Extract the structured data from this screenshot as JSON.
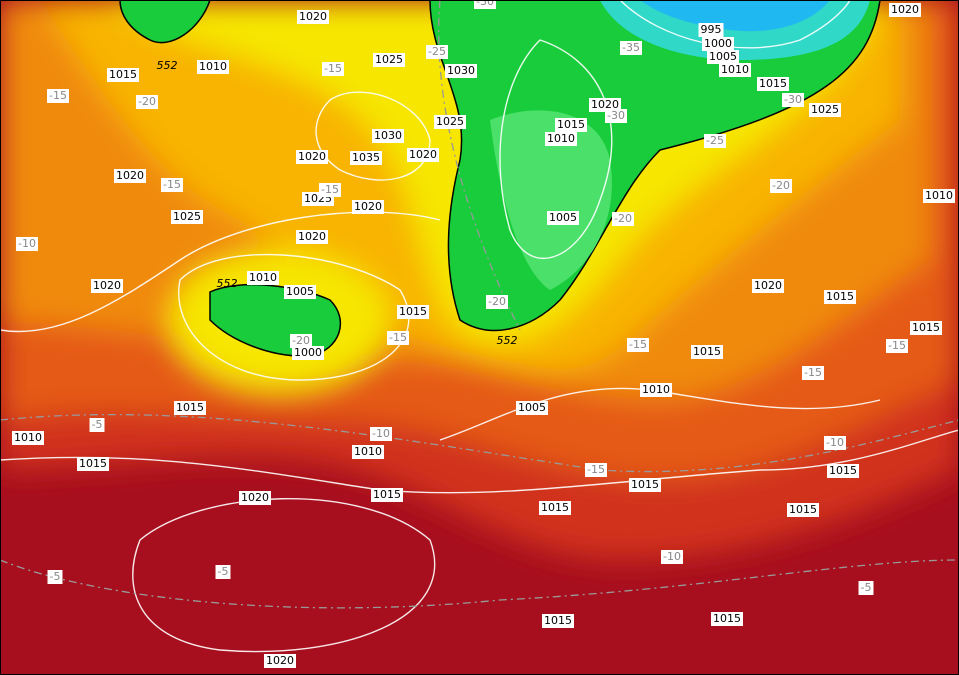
{
  "map": {
    "isobar_labels": [
      1020,
      1015,
      1010,
      1025,
      1030,
      1030,
      1035,
      1020,
      1020,
      1025,
      1020,
      1025,
      1025,
      1020,
      1020,
      1020,
      1010,
      1005,
      1000,
      1015,
      1015,
      1010,
      1015,
      1010,
      1020,
      1015,
      1020,
      1015,
      1015,
      1015,
      1015,
      1015,
      1015,
      1015,
      1010,
      1005,
      1015,
      1015,
      1020,
      1010,
      1020,
      1025,
      1015,
      1020,
      1015,
      1010,
      1005,
      995,
      1000,
      1005,
      1010
    ],
    "temperature_labels": [
      -15,
      -20,
      -15,
      -25,
      -30,
      -35,
      -30,
      -30,
      -25,
      -20,
      -15,
      -15,
      -10,
      -20,
      -20,
      -20,
      -15,
      -15,
      -15,
      -15,
      -10,
      -5,
      -10,
      -15,
      -10,
      -5,
      -5,
      -5
    ],
    "height_labels": [
      552,
      552,
      552
    ]
  }
}
